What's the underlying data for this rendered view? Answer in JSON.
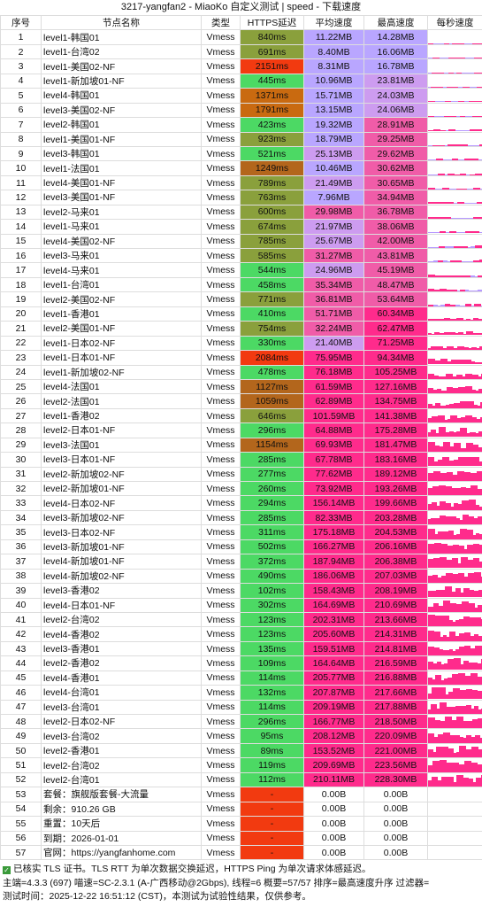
{
  "title": "3217-yangfan2 - MiaoKo 自定义测试 | speed - 下载速度",
  "headers": [
    "序号",
    "节点名称",
    "类型",
    "HTTPS延迟",
    "平均速度",
    "最高速度",
    "每秒速度"
  ],
  "rows": [
    [
      "1",
      "level1-韩国01",
      "Vmess",
      "840ms",
      "11.22MB",
      "14.28MB"
    ],
    [
      "2",
      "level1-台湾02",
      "Vmess",
      "691ms",
      "8.40MB",
      "16.06MB"
    ],
    [
      "3",
      "level1-美国02-NF",
      "Vmess",
      "2151ms",
      "8.31MB",
      "16.78MB"
    ],
    [
      "4",
      "level1-新加坡01-NF",
      "Vmess",
      "445ms",
      "10.96MB",
      "23.81MB"
    ],
    [
      "5",
      "level4-韩国01",
      "Vmess",
      "1371ms",
      "15.71MB",
      "24.03MB"
    ],
    [
      "6",
      "level3-美国02-NF",
      "Vmess",
      "1791ms",
      "13.15MB",
      "24.06MB"
    ],
    [
      "7",
      "level2-韩国01",
      "Vmess",
      "423ms",
      "19.32MB",
      "28.91MB"
    ],
    [
      "8",
      "level1-美国01-NF",
      "Vmess",
      "923ms",
      "18.79MB",
      "29.25MB"
    ],
    [
      "9",
      "level3-韩国01",
      "Vmess",
      "521ms",
      "25.13MB",
      "29.62MB"
    ],
    [
      "10",
      "level1-法国01",
      "Vmess",
      "1249ms",
      "10.46MB",
      "30.62MB"
    ],
    [
      "11",
      "level4-美国01-NF",
      "Vmess",
      "789ms",
      "21.49MB",
      "30.65MB"
    ],
    [
      "12",
      "level3-美国01-NF",
      "Vmess",
      "763ms",
      "7.96MB",
      "34.94MB"
    ],
    [
      "13",
      "level2-马来01",
      "Vmess",
      "600ms",
      "29.98MB",
      "36.78MB"
    ],
    [
      "14",
      "level1-马来01",
      "Vmess",
      "674ms",
      "21.97MB",
      "38.06MB"
    ],
    [
      "15",
      "level4-美国02-NF",
      "Vmess",
      "785ms",
      "25.67MB",
      "42.00MB"
    ],
    [
      "16",
      "level3-马来01",
      "Vmess",
      "585ms",
      "31.27MB",
      "43.81MB"
    ],
    [
      "17",
      "level4-马来01",
      "Vmess",
      "544ms",
      "24.96MB",
      "45.19MB"
    ],
    [
      "18",
      "level1-台湾01",
      "Vmess",
      "458ms",
      "35.34MB",
      "48.47MB"
    ],
    [
      "19",
      "level2-美国02-NF",
      "Vmess",
      "771ms",
      "36.81MB",
      "53.64MB"
    ],
    [
      "20",
      "level1-香港01",
      "Vmess",
      "410ms",
      "51.71MB",
      "60.34MB"
    ],
    [
      "21",
      "level2-美国01-NF",
      "Vmess",
      "754ms",
      "32.24MB",
      "62.47MB"
    ],
    [
      "22",
      "level1-日本02-NF",
      "Vmess",
      "330ms",
      "21.40MB",
      "71.25MB"
    ],
    [
      "23",
      "level1-日本01-NF",
      "Vmess",
      "2084ms",
      "75.95MB",
      "94.34MB"
    ],
    [
      "24",
      "level1-新加坡02-NF",
      "Vmess",
      "478ms",
      "76.18MB",
      "105.25MB"
    ],
    [
      "25",
      "level4-法国01",
      "Vmess",
      "1127ms",
      "61.59MB",
      "127.16MB"
    ],
    [
      "26",
      "level2-法国01",
      "Vmess",
      "1059ms",
      "62.89MB",
      "134.75MB"
    ],
    [
      "27",
      "level1-香港02",
      "Vmess",
      "646ms",
      "101.59MB",
      "141.38MB"
    ],
    [
      "28",
      "level2-日本01-NF",
      "Vmess",
      "296ms",
      "64.88MB",
      "175.28MB"
    ],
    [
      "29",
      "level3-法国01",
      "Vmess",
      "1154ms",
      "69.93MB",
      "181.47MB"
    ],
    [
      "30",
      "level3-日本01-NF",
      "Vmess",
      "285ms",
      "67.78MB",
      "183.16MB"
    ],
    [
      "31",
      "level2-新加坡02-NF",
      "Vmess",
      "277ms",
      "77.62MB",
      "189.12MB"
    ],
    [
      "32",
      "level2-新加坡01-NF",
      "Vmess",
      "260ms",
      "73.92MB",
      "193.26MB"
    ],
    [
      "33",
      "level4-日本02-NF",
      "Vmess",
      "294ms",
      "156.14MB",
      "199.66MB"
    ],
    [
      "34",
      "level3-新加坡02-NF",
      "Vmess",
      "285ms",
      "82.33MB",
      "203.28MB"
    ],
    [
      "35",
      "level3-日本02-NF",
      "Vmess",
      "311ms",
      "175.18MB",
      "204.53MB"
    ],
    [
      "36",
      "level3-新加坡01-NF",
      "Vmess",
      "502ms",
      "166.27MB",
      "206.16MB"
    ],
    [
      "37",
      "level4-新加坡01-NF",
      "Vmess",
      "372ms",
      "187.94MB",
      "206.38MB"
    ],
    [
      "38",
      "level4-新加坡02-NF",
      "Vmess",
      "490ms",
      "186.06MB",
      "207.03MB"
    ],
    [
      "39",
      "level3-香港02",
      "Vmess",
      "102ms",
      "158.43MB",
      "208.19MB"
    ],
    [
      "40",
      "level4-日本01-NF",
      "Vmess",
      "302ms",
      "164.69MB",
      "210.69MB"
    ],
    [
      "41",
      "level2-台湾02",
      "Vmess",
      "123ms",
      "202.31MB",
      "213.66MB"
    ],
    [
      "42",
      "level4-香港02",
      "Vmess",
      "123ms",
      "205.60MB",
      "214.31MB"
    ],
    [
      "43",
      "level3-香港01",
      "Vmess",
      "135ms",
      "159.51MB",
      "214.81MB"
    ],
    [
      "44",
      "level2-香港02",
      "Vmess",
      "109ms",
      "164.64MB",
      "216.59MB"
    ],
    [
      "45",
      "level4-香港01",
      "Vmess",
      "114ms",
      "205.77MB",
      "216.88MB"
    ],
    [
      "46",
      "level4-台湾01",
      "Vmess",
      "132ms",
      "207.87MB",
      "217.66MB"
    ],
    [
      "47",
      "level3-台湾01",
      "Vmess",
      "114ms",
      "209.19MB",
      "217.88MB"
    ],
    [
      "48",
      "level2-日本02-NF",
      "Vmess",
      "296ms",
      "166.77MB",
      "218.50MB"
    ],
    [
      "49",
      "level3-台湾02",
      "Vmess",
      "95ms",
      "208.12MB",
      "220.09MB"
    ],
    [
      "50",
      "level2-香港01",
      "Vmess",
      "89ms",
      "153.52MB",
      "221.00MB"
    ],
    [
      "51",
      "level2-台湾02",
      "Vmess",
      "119ms",
      "209.69MB",
      "223.56MB"
    ],
    [
      "52",
      "level2-台湾01",
      "Vmess",
      "112ms",
      "210.11MB",
      "228.30MB"
    ],
    [
      "53",
      "套餐：旗舰版套餐-大流量",
      "Vmess",
      "-",
      "0.00B",
      "0.00B"
    ],
    [
      "54",
      "剩余：910.26 GB",
      "Vmess",
      "-",
      "0.00B",
      "0.00B"
    ],
    [
      "55",
      "重置：10天后",
      "Vmess",
      "-",
      "0.00B",
      "0.00B"
    ],
    [
      "56",
      "到期：2026-01-01",
      "Vmess",
      "-",
      "0.00B",
      "0.00B"
    ],
    [
      "57",
      "官网：https://yangfanhome.com",
      "Vmess",
      "-",
      "0.00B",
      "0.00B"
    ]
  ],
  "footer": {
    "line1": "已核实 TLS 证书。TLS RTT 为单次数据交换延迟，HTTPS Ping 为单次请求体感延迟。",
    "line2": "主端=4.3.3 (697) 喵速=SC-2.3.1 (A-广西移动@2Gbps), 线程=6 概要=57/57 排序=最高速度升序 过滤器=",
    "line3": "测试时间：2025-12-22 16:51:12 (CST)，本测试为试验性结果，仅供参考。"
  },
  "colors": {
    "rtt_green": "#4cd964",
    "rtt_olive": "#8aa03c",
    "rtt_brown": "#b3661c",
    "rtt_orange": "#c96a10",
    "rtt_red": "#f23a10",
    "speed_violet": "#b9a6ff",
    "speed_lilac": "#cd9cf0",
    "speed_pink": "#f05ca8",
    "speed_hot": "#ff2b8c",
    "spark_low": "#b79aff",
    "spark_high": "#ff2b8c"
  }
}
